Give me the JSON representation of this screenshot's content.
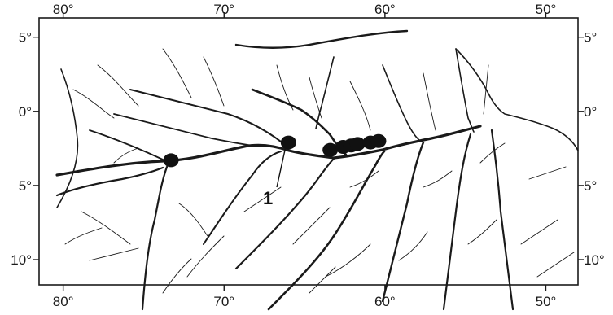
{
  "map": {
    "lon_ticks": [
      "80°",
      "70°",
      "60°",
      "50°"
    ],
    "lat_ticks": [
      "5°",
      "0°",
      "5°",
      "10°"
    ],
    "lon_values": [
      -80,
      -70,
      -60,
      -50
    ],
    "lat_values": [
      5,
      0,
      -5,
      -10
    ],
    "extent": {
      "lon": [
        -81.5,
        -48.0
      ],
      "lat": [
        6.3,
        -11.7
      ]
    },
    "site_label": "1",
    "sites": [
      {
        "lon": -73.3,
        "lat": -3.3
      },
      {
        "lon": -66.0,
        "lat": -2.1
      },
      {
        "lon": -63.4,
        "lat": -2.6
      },
      {
        "lon": -62.6,
        "lat": -2.4
      },
      {
        "lon": -62.1,
        "lat": -2.3
      },
      {
        "lon": -61.7,
        "lat": -2.2
      },
      {
        "lon": -60.9,
        "lat": -2.1
      },
      {
        "lon": -60.4,
        "lat": -2.0
      }
    ],
    "colors": {
      "river": "#1a1a1a",
      "coast": "#1a1a1a",
      "site": "#111111",
      "frame": "#1a1a1a"
    }
  }
}
